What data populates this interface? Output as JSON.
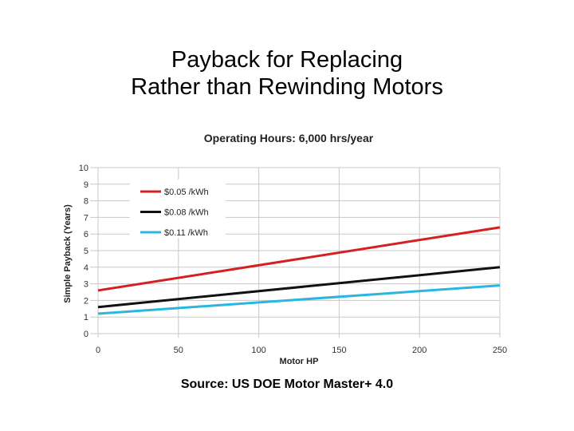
{
  "slide": {
    "title_line1": "Payback for Replacing",
    "title_line2": "Rather than Rewinding Motors",
    "source": "Source: US DOE Motor Master+ 4.0"
  },
  "chart_data": {
    "type": "line",
    "title": "Operating Hours: 6,000 hrs/year",
    "xlabel": "Motor HP",
    "ylabel": "Simple Payback (Years)",
    "xlim": [
      0,
      250
    ],
    "ylim": [
      0,
      10
    ],
    "xticks": [
      0,
      50,
      100,
      150,
      200,
      250
    ],
    "yticks": [
      0,
      1,
      2,
      3,
      4,
      5,
      6,
      7,
      8,
      9,
      10
    ],
    "grid": "horizontal",
    "legend_position": "top-left",
    "series": [
      {
        "name": "$0.05 /kWh",
        "color": "#d42020",
        "x": [
          0,
          250
        ],
        "values": [
          2.6,
          6.4
        ]
      },
      {
        "name": "$0.08 /kWh",
        "color": "#111111",
        "x": [
          0,
          250
        ],
        "values": [
          1.6,
          4.0
        ]
      },
      {
        "name": "$0.11 /kWh",
        "color": "#2ab6e0",
        "x": [
          0,
          250
        ],
        "values": [
          1.2,
          2.9
        ]
      }
    ]
  }
}
